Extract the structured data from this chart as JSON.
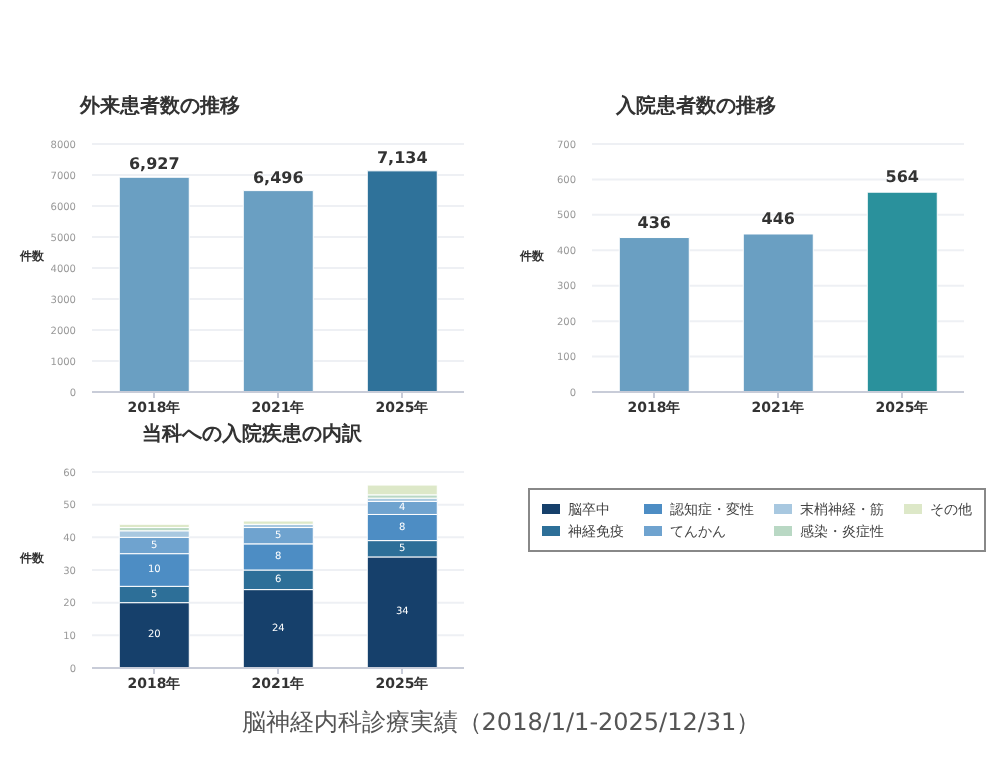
{
  "chart_data": [
    {
      "type": "bar",
      "title": "外来患者数の推移",
      "ylabel": "件数",
      "categories": [
        "2018年",
        "2021年",
        "2025年"
      ],
      "values": [
        6927,
        6496,
        7134
      ],
      "colors": [
        "#6a9fc2",
        "#6a9fc2",
        "#2f729a"
      ],
      "value_labels": [
        "6,927",
        "6,496",
        "7,134"
      ],
      "ylim": [
        0,
        8000
      ],
      "yticks": [
        0,
        1000,
        2000,
        3000,
        4000,
        5000,
        6000,
        7000,
        8000
      ],
      "grid": "y"
    },
    {
      "type": "bar",
      "title": "入院患者数の推移",
      "ylabel": "件数",
      "categories": [
        "2018年",
        "2021年",
        "2025年"
      ],
      "values": [
        436,
        446,
        564
      ],
      "colors": [
        "#6a9fc2",
        "#6a9fc2",
        "#2a919c"
      ],
      "ylim": [
        0,
        700
      ],
      "yticks": [
        0,
        100,
        200,
        300,
        400,
        500,
        600,
        700
      ],
      "grid": "y",
      "data_labels": true
    },
    {
      "type": "bar",
      "title": "当科への入院疾患の内訳",
      "ylabel": "件数",
      "categories": [
        "2018年",
        "2021年",
        "2025年"
      ],
      "stacked": true,
      "ylim": [
        0,
        60
      ],
      "yticks": [
        0,
        10,
        20,
        30,
        40,
        50,
        60
      ],
      "grid": "y",
      "legend": "right",
      "annotations": [
        "脳神経内科診療実績（2018/1/1-2025/12/31）"
      ],
      "series": [
        {
          "name": "脳卒中",
          "color": "#16406b",
          "values": [
            20,
            24,
            34
          ],
          "value_labels": [
            "20",
            "24",
            "34"
          ]
        },
        {
          "name": "神経免疫",
          "color": "#2d6f98",
          "values": [
            5,
            6,
            5
          ],
          "value_labels": [
            "5",
            "6",
            "5"
          ]
        },
        {
          "name": "認知症・変性",
          "color": "#4d8dc4",
          "values": [
            10,
            8,
            8
          ],
          "value_labels": [
            "10",
            "8",
            "8"
          ]
        },
        {
          "name": "てんかん",
          "color": "#6fa3cf",
          "values": [
            5,
            5,
            4
          ],
          "value_labels": [
            "5",
            "5",
            "4"
          ]
        },
        {
          "name": "末梢神経・筋",
          "color": "#a8c8e0",
          "values": [
            2,
            1,
            1
          ]
        },
        {
          "name": "感染・炎症性",
          "color": "#b9d8c4",
          "values": [
            1,
            0,
            1
          ]
        },
        {
          "name": "その他",
          "color": "#dde8c8",
          "values": [
            1,
            1,
            3
          ]
        }
      ]
    }
  ]
}
